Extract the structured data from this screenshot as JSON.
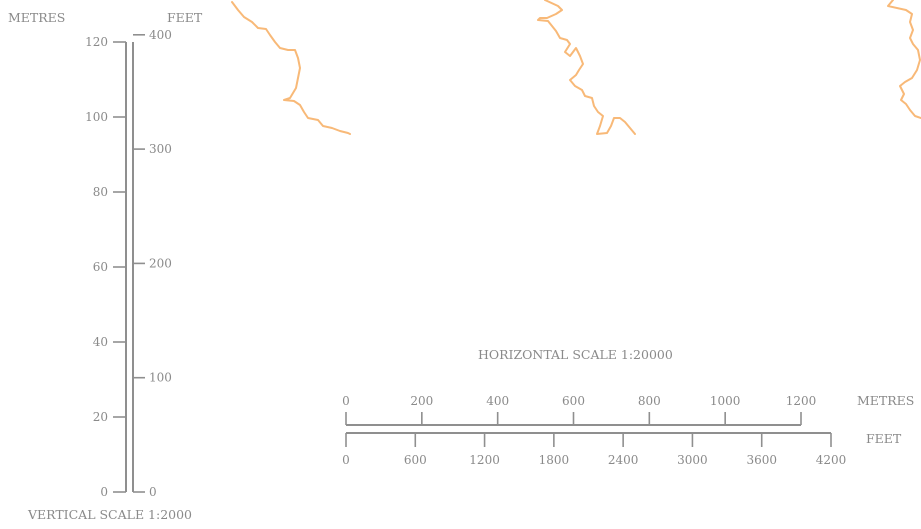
{
  "vertical_scale": {
    "title": "VERTICAL SCALE 1:2000",
    "metres_label": "METRES",
    "feet_label": "FEET",
    "metres_ticks": [
      "0",
      "20",
      "40",
      "60",
      "80",
      "100",
      "120"
    ],
    "feet_ticks": [
      "0",
      "100",
      "200",
      "300",
      "400"
    ]
  },
  "horizontal_scale": {
    "title": "HORIZONTAL SCALE 1:20000",
    "metres_label": "METRES",
    "feet_label": "FEET",
    "metres_ticks": [
      "0",
      "200",
      "400",
      "600",
      "800",
      "1000",
      "1200"
    ],
    "feet_ticks": [
      "0",
      "600",
      "1200",
      "1800",
      "2400",
      "3000",
      "3600",
      "4200"
    ]
  },
  "contour_color": "#f8b978",
  "scale_color": "#8f8f8f"
}
